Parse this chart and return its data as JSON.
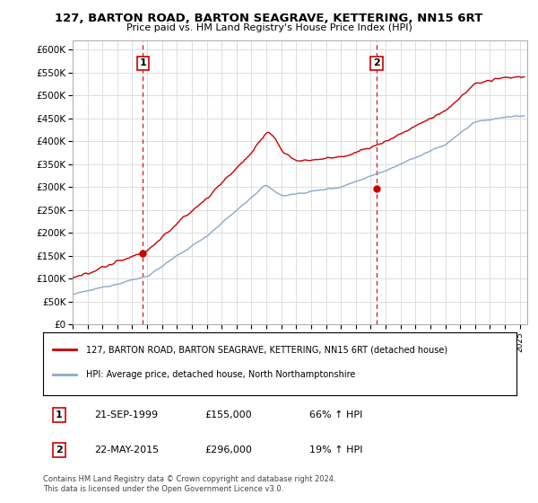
{
  "title_line1": "127, BARTON ROAD, BARTON SEAGRAVE, KETTERING, NN15 6RT",
  "title_line2": "Price paid vs. HM Land Registry's House Price Index (HPI)",
  "ylim": [
    0,
    620000
  ],
  "yticks": [
    0,
    50000,
    100000,
    150000,
    200000,
    250000,
    300000,
    350000,
    400000,
    450000,
    500000,
    550000,
    600000
  ],
  "ytick_labels": [
    "£0",
    "£50K",
    "£100K",
    "£150K",
    "£200K",
    "£250K",
    "£300K",
    "£350K",
    "£400K",
    "£450K",
    "£500K",
    "£550K",
    "£600K"
  ],
  "xlim_start": 1995.0,
  "xlim_end": 2025.5,
  "sale1_date": 1999.72,
  "sale1_price": 155000,
  "sale1_label": "1",
  "sale2_date": 2015.39,
  "sale2_price": 296000,
  "sale2_label": "2",
  "red_line_color": "#cc0000",
  "blue_line_color": "#88aacc",
  "dashed_line_color": "#cc0000",
  "grid_color": "#dddddd",
  "background_color": "#ffffff",
  "legend_label_red": "127, BARTON ROAD, BARTON SEAGRAVE, KETTERING, NN15 6RT (detached house)",
  "legend_label_blue": "HPI: Average price, detached house, North Northamptonshire",
  "table_row1": [
    "1",
    "21-SEP-1999",
    "£155,000",
    "66% ↑ HPI"
  ],
  "table_row2": [
    "2",
    "22-MAY-2015",
    "£296,000",
    "19% ↑ HPI"
  ],
  "footnote": "Contains HM Land Registry data © Crown copyright and database right 2024.\nThis data is licensed under the Open Government Licence v3.0."
}
